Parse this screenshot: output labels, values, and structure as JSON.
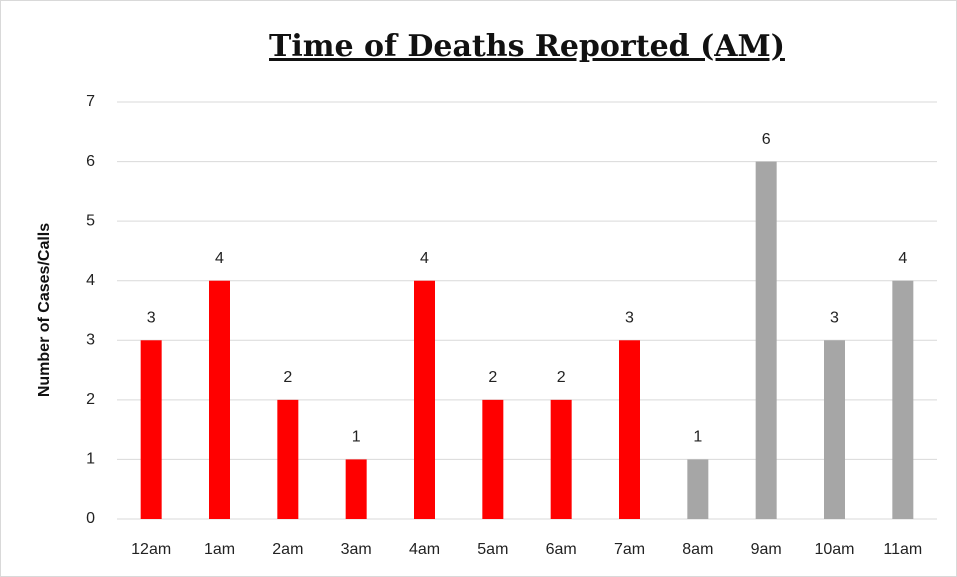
{
  "chart_data": {
    "type": "bar",
    "title": "Time of Deaths Reported (AM)",
    "y_label": "Number of Cases/Calls",
    "categories": [
      "12am",
      "1am",
      "2am",
      "3am",
      "4am",
      "5am",
      "6am",
      "7am",
      "8am",
      "9am",
      "10am",
      "11am"
    ],
    "values": [
      3,
      4,
      2,
      1,
      4,
      2,
      2,
      3,
      1,
      6,
      3,
      4
    ],
    "colors": [
      "#ff0000",
      "#ff0000",
      "#ff0000",
      "#ff0000",
      "#ff0000",
      "#ff0000",
      "#ff0000",
      "#ff0000",
      "#a6a6a6",
      "#a6a6a6",
      "#a6a6a6",
      "#a6a6a6"
    ],
    "ylim": [
      0,
      7
    ],
    "yticks": [
      0,
      1,
      2,
      3,
      4,
      5,
      6,
      7
    ],
    "grid": true,
    "data_labels": true
  }
}
